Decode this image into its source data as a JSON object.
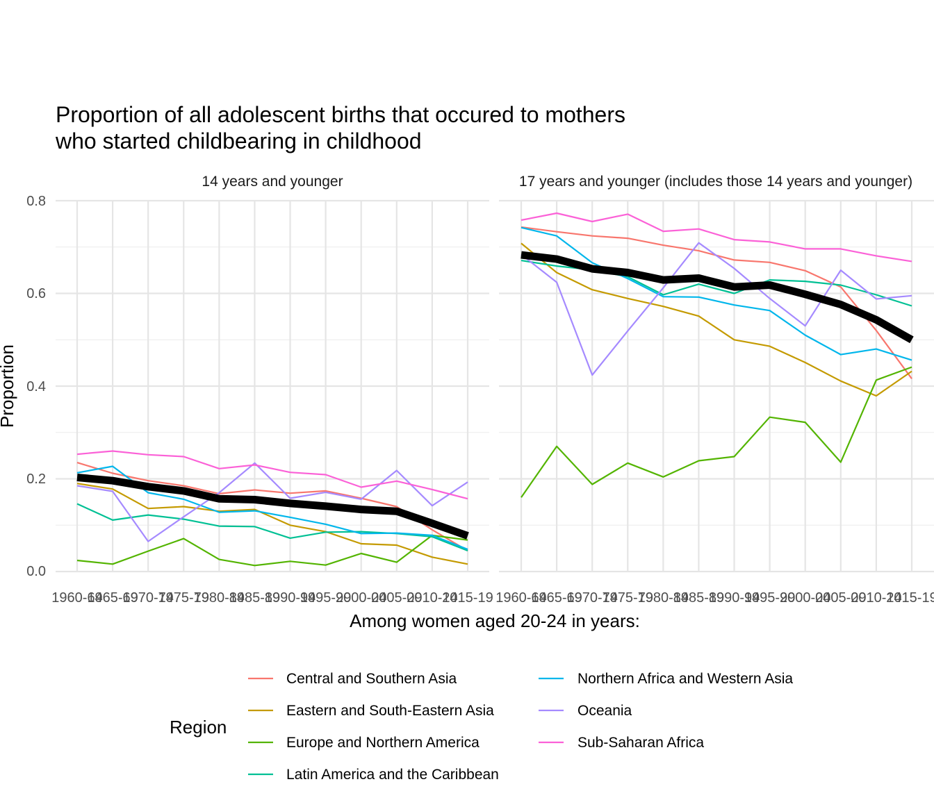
{
  "chart_data": {
    "type": "line",
    "title_lines": [
      "Proportion of all adolescent births that occured to mothers",
      "who started childbearing in childhood"
    ],
    "xlabel": "Among women aged 20-24 in years:",
    "ylabel": "Proportion",
    "ylim": [
      0,
      0.8
    ],
    "yticks": [
      "0.0",
      "0.2",
      "0.4",
      "0.6",
      "0.8"
    ],
    "categories": [
      "1960-64",
      "1965-69",
      "1970-74",
      "1975-79",
      "1980-84",
      "1985-89",
      "1990-94",
      "1995-99",
      "2000-04",
      "2005-09",
      "2010-14",
      "2015-19"
    ],
    "grid": true,
    "legend": {
      "title": "Region",
      "position": "bottom",
      "entries": [
        "Central and Southern Asia",
        "Eastern and South-Eastern Asia",
        "Europe and Northern America",
        "Latin America and the Caribbean",
        "Northern Africa and Western Asia",
        "Oceania",
        "Sub-Saharan Africa"
      ]
    },
    "colors": {
      "Central and Southern Asia": "#F8766D",
      "Eastern and South-Eastern Asia": "#C49A00",
      "Europe and Northern America": "#53B400",
      "Latin America and the Caribbean": "#00C094",
      "Northern Africa and Western Asia": "#00B6EB",
      "Oceania": "#A58AFF",
      "Sub-Saharan Africa": "#FB61D7",
      "overall": "#000000"
    },
    "panels": [
      {
        "label": "14 years and younger",
        "series": [
          {
            "name": "Central and Southern Asia",
            "values": [
              0.235,
              0.212,
              0.196,
              0.185,
              0.168,
              0.176,
              0.169,
              0.174,
              0.158,
              0.14,
              0.09,
              0.045
            ]
          },
          {
            "name": "Eastern and South-Eastern Asia",
            "values": [
              0.19,
              0.178,
              0.136,
              0.14,
              0.13,
              0.134,
              0.1,
              0.086,
              0.06,
              0.057,
              0.031,
              0.016
            ]
          },
          {
            "name": "Europe and Northern America",
            "values": [
              0.024,
              0.016,
              0.044,
              0.071,
              0.026,
              0.013,
              0.022,
              0.014,
              0.039,
              0.02,
              0.078,
              0.068
            ]
          },
          {
            "name": "Latin America and the Caribbean",
            "values": [
              0.146,
              0.111,
              0.122,
              0.113,
              0.098,
              0.097,
              0.072,
              0.085,
              0.086,
              0.082,
              0.075,
              0.045
            ]
          },
          {
            "name": "Northern Africa and Western Asia",
            "values": [
              0.213,
              0.227,
              0.17,
              0.156,
              0.128,
              0.131,
              0.117,
              0.102,
              0.082,
              0.083,
              0.078,
              0.048
            ]
          },
          {
            "name": "Oceania",
            "values": [
              0.185,
              0.173,
              0.065,
              0.118,
              0.17,
              0.234,
              0.158,
              0.171,
              0.156,
              0.218,
              0.142,
              0.193
            ]
          },
          {
            "name": "Sub-Saharan Africa",
            "values": [
              0.253,
              0.26,
              0.252,
              0.248,
              0.222,
              0.23,
              0.214,
              0.209,
              0.182,
              0.195,
              0.177,
              0.157
            ]
          }
        ],
        "overall": [
          0.203,
          0.196,
          0.183,
          0.174,
          0.157,
          0.155,
          0.147,
          0.141,
          0.134,
          0.13,
          0.104,
          0.077
        ]
      },
      {
        "label": "17 years and younger (includes those 14 years and younger)",
        "series": [
          {
            "name": "Central and Southern Asia",
            "values": [
              0.743,
              0.733,
              0.724,
              0.719,
              0.704,
              0.692,
              0.672,
              0.667,
              0.649,
              0.614,
              0.52,
              0.416
            ]
          },
          {
            "name": "Eastern and South-Eastern Asia",
            "values": [
              0.708,
              0.645,
              0.608,
              0.589,
              0.572,
              0.551,
              0.5,
              0.486,
              0.451,
              0.411,
              0.379,
              0.432
            ]
          },
          {
            "name": "Europe and Northern America",
            "values": [
              0.16,
              0.27,
              0.188,
              0.234,
              0.204,
              0.239,
              0.248,
              0.333,
              0.322,
              0.236,
              0.413,
              0.441
            ]
          },
          {
            "name": "Latin America and the Caribbean",
            "values": [
              0.671,
              0.659,
              0.651,
              0.636,
              0.597,
              0.62,
              0.6,
              0.629,
              0.626,
              0.618,
              0.597,
              0.573
            ]
          },
          {
            "name": "Northern Africa and Western Asia",
            "values": [
              0.742,
              0.724,
              0.666,
              0.632,
              0.593,
              0.592,
              0.575,
              0.563,
              0.51,
              0.468,
              0.48,
              0.456
            ]
          },
          {
            "name": "Oceania",
            "values": [
              0.684,
              0.624,
              0.424,
              0.519,
              0.612,
              0.709,
              0.654,
              0.589,
              0.53,
              0.65,
              0.588,
              0.595
            ]
          },
          {
            "name": "Sub-Saharan Africa",
            "values": [
              0.758,
              0.773,
              0.755,
              0.771,
              0.734,
              0.739,
              0.716,
              0.711,
              0.696,
              0.696,
              0.681,
              0.669
            ]
          }
        ],
        "overall": [
          0.683,
          0.674,
          0.653,
          0.645,
          0.629,
          0.633,
          0.614,
          0.618,
          0.598,
          0.576,
          0.543,
          0.5
        ]
      }
    ]
  }
}
